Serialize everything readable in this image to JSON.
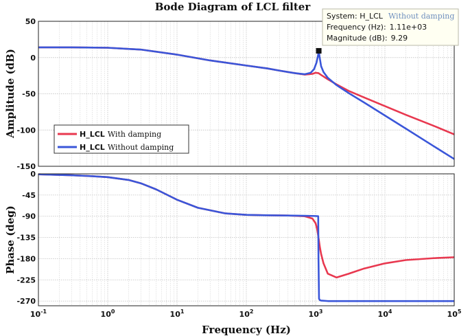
{
  "chart_data": {
    "type": "line",
    "title": "Bode Diagram of LCL filter",
    "xlabel": "Frequency (Hz)",
    "xscale": "log",
    "xlim": [
      0.1,
      100000
    ],
    "x_tick_labels": [
      {
        "value": 0.1,
        "base": "10",
        "exp": "-1"
      },
      {
        "value": 1,
        "base": "10",
        "exp": "0"
      },
      {
        "value": 10,
        "base": "10",
        "exp": "1"
      },
      {
        "value": 100,
        "base": "10",
        "exp": "2"
      },
      {
        "value": 1000,
        "base": "10",
        "exp": "3"
      },
      {
        "value": 10000,
        "base": "10",
        "exp": "4"
      },
      {
        "value": 100000,
        "base": "10",
        "exp": "5"
      }
    ],
    "grid": true,
    "legend_position": "bottom-left of magnitude panel",
    "colors": {
      "with_damping": "#e8384f",
      "without_damping": "#3a56d9",
      "grid": "#c8c8c8"
    },
    "magnitude": {
      "ylabel": "Amplitude (dB)",
      "ylim": [
        -150,
        50
      ],
      "yticks": [
        50,
        0,
        -50,
        -100,
        -150
      ],
      "ytick_labels": [
        "50",
        "0",
        "-50",
        "-100",
        "-150"
      ],
      "series": [
        {
          "name": "H_LCL",
          "name_suffix": "With damping",
          "x": [
            0.1,
            0.3,
            1,
            3,
            10,
            30,
            100,
            200,
            300,
            500,
            700,
            900,
            1000,
            1100,
            1200,
            1500,
            2000,
            3000,
            5000,
            10000,
            20000,
            50000,
            100000
          ],
          "y": [
            14,
            14,
            13.5,
            11,
            4,
            -4,
            -11,
            -15,
            -18,
            -21.5,
            -23.5,
            -22.5,
            -21,
            -21.5,
            -24,
            -30,
            -37,
            -46,
            -55,
            -67,
            -79,
            -94,
            -106
          ]
        },
        {
          "name": "H_LCL",
          "name_suffix": "Without damping",
          "x": [
            0.1,
            0.3,
            1,
            3,
            10,
            30,
            100,
            200,
            300,
            500,
            700,
            850,
            950,
            1030,
            1080,
            1110,
            1140,
            1200,
            1300,
            1500,
            2000,
            3000,
            5000,
            10000,
            20000,
            50000,
            100000
          ],
          "y": [
            14,
            14,
            13.5,
            11,
            4,
            -4,
            -11,
            -15,
            -18,
            -21.5,
            -23,
            -21,
            -16,
            -7,
            2,
            9.29,
            1,
            -12,
            -20,
            -28,
            -38,
            -49,
            -62,
            -80,
            -98,
            -122,
            -140
          ]
        }
      ]
    },
    "phase": {
      "ylabel": "Phase (deg)",
      "ylim": [
        -280,
        0
      ],
      "yticks": [
        0,
        -45,
        -90,
        -135,
        -180,
        -225,
        -270
      ],
      "ytick_labels": [
        "0",
        "-45",
        "-90",
        "-135",
        "-180",
        "-225",
        "-270"
      ],
      "series": [
        {
          "name": "H_LCL",
          "name_suffix": "With damping",
          "x": [
            0.1,
            0.3,
            0.6,
            1,
            2,
            3,
            5,
            10,
            20,
            50,
            100,
            200,
            400,
            700,
            900,
            1000,
            1050,
            1100,
            1150,
            1200,
            1300,
            1500,
            2000,
            3000,
            5000,
            10000,
            20000,
            50000,
            100000
          ],
          "y": [
            -1,
            -3,
            -5,
            -7,
            -13,
            -20,
            -33,
            -55,
            -72,
            -84,
            -87,
            -88,
            -88.5,
            -90,
            -95,
            -105,
            -117,
            -135,
            -155,
            -170,
            -190,
            -212,
            -220,
            -212,
            -201,
            -190,
            -183,
            -179,
            -177
          ]
        },
        {
          "name": "H_LCL",
          "name_suffix": "Without damping",
          "x": [
            0.1,
            0.3,
            0.6,
            1,
            2,
            3,
            5,
            10,
            20,
            50,
            100,
            200,
            400,
            700,
            1000,
            1090,
            1100,
            1120,
            1150,
            1200,
            1500,
            3000,
            10000,
            100000
          ],
          "y": [
            -1,
            -3,
            -5,
            -7,
            -13,
            -20,
            -33,
            -55,
            -72,
            -84,
            -87,
            -88,
            -88.5,
            -89,
            -89.5,
            -90,
            -180,
            -265,
            -268,
            -269,
            -270,
            -270,
            -270,
            -270
          ]
        }
      ]
    },
    "marker": {
      "x": 1110,
      "y": 9.29
    },
    "datatip": {
      "system_label": "System: H_LCL",
      "system_desc": "Without damping",
      "frequency_label": "Frequency (Hz):",
      "frequency_value": "1.11e+03",
      "magnitude_label": "Magnitude (dB):",
      "magnitude_value": "9.29"
    }
  }
}
